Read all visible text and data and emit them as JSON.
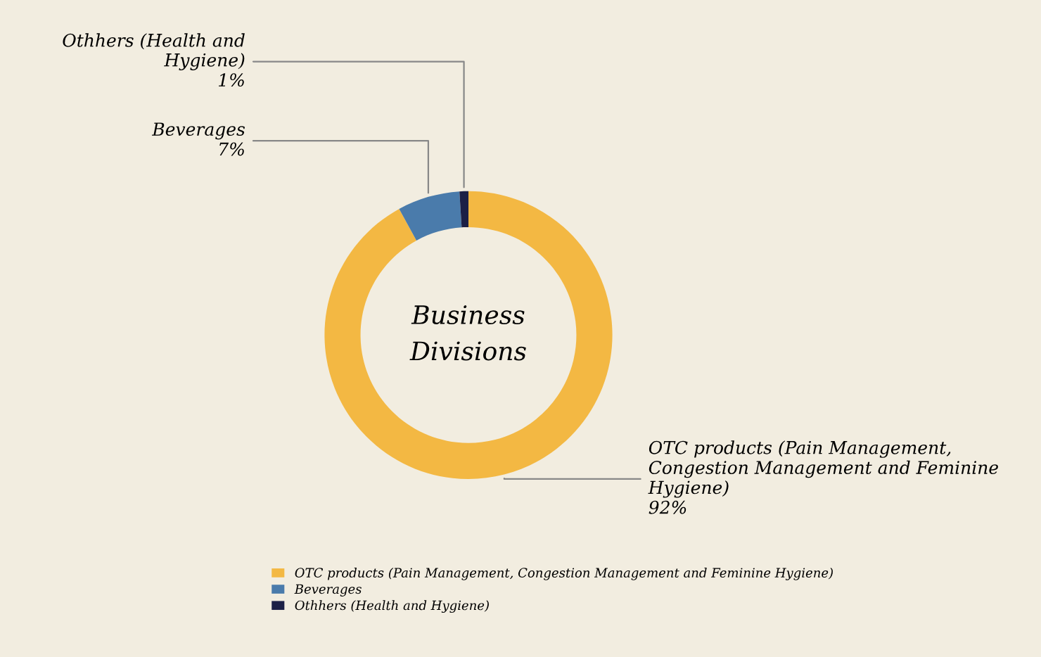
{
  "chart_data": {
    "type": "donut",
    "title": "Business Divisions",
    "categories": [
      "OTC products (Pain Management, Congestion Management and Feminine Hygiene)",
      "Beverages",
      "Othhers (Health and Hygiene)"
    ],
    "values": [
      92,
      7,
      1
    ],
    "colors": [
      "#f3b843",
      "#4a7bab",
      "#1c2046"
    ],
    "value_labels": [
      "92%",
      "7%",
      "1%"
    ],
    "legend": "bottom"
  }
}
